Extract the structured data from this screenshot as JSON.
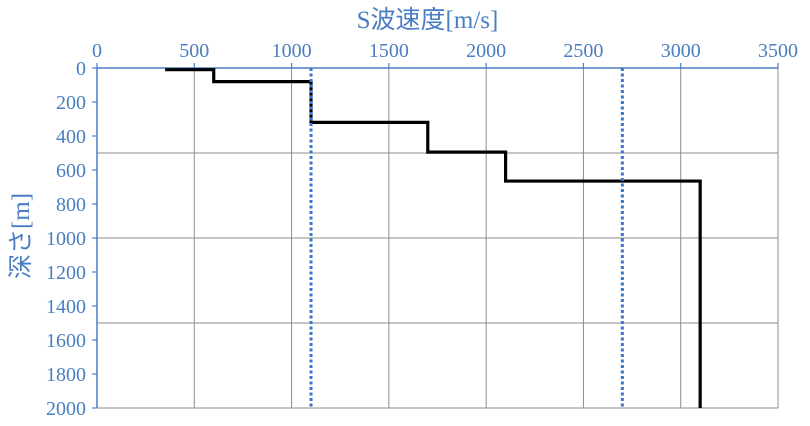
{
  "chart_data": {
    "type": "line",
    "title": "",
    "xlabel": "S波速度[m/s]",
    "ylabel": "深さ[m]",
    "x_axis_position": "top",
    "y_axis_inverted": true,
    "xlim": [
      0,
      3500
    ],
    "ylim": [
      0,
      2000
    ],
    "x_ticks": [
      0,
      500,
      1000,
      1500,
      2000,
      2500,
      3000,
      3500
    ],
    "y_ticks": [
      0,
      200,
      400,
      600,
      800,
      1000,
      1200,
      1400,
      1600,
      1800,
      2000
    ],
    "grid": {
      "vertical_at": [
        500,
        1000,
        1500,
        2000,
        2500,
        3000,
        3500
      ],
      "horizontal_at": [
        500,
        1000,
        1500,
        2000
      ]
    },
    "axis_color": "#4a7ec2",
    "series": [
      {
        "style": "solid",
        "color": "#000000",
        "x": [
          350,
          600,
          600,
          1100,
          1100,
          1700,
          1700,
          2100,
          2100,
          3100,
          3100
        ],
        "y": [
          10,
          10,
          80,
          80,
          320,
          320,
          495,
          495,
          665,
          665,
          2000
        ]
      },
      {
        "style": "dotted",
        "color": "#3a74cf",
        "x": [
          1100,
          1100
        ],
        "y": [
          0,
          2000
        ]
      },
      {
        "style": "dotted",
        "color": "#3a74cf",
        "x": [
          2700,
          2700
        ],
        "y": [
          0,
          2000
        ]
      }
    ]
  }
}
